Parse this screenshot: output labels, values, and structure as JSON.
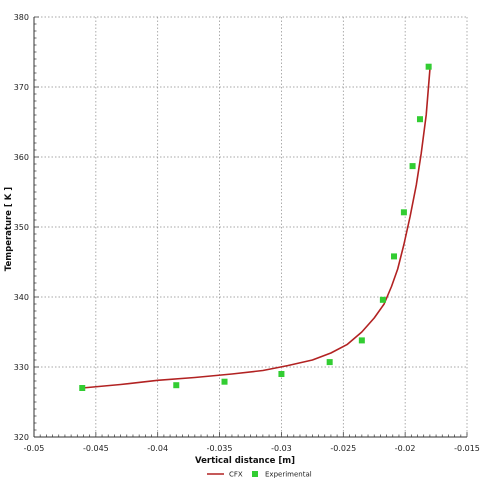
{
  "chart_data": {
    "type": "line",
    "xlabel": "Vertical distance [m]",
    "ylabel": "Temperature [ K ]",
    "xlim": [
      -0.05,
      -0.015
    ],
    "ylim": [
      320,
      380
    ],
    "xticks": [
      -0.05,
      -0.045,
      -0.04,
      -0.035,
      -0.03,
      -0.025,
      -0.02,
      -0.015
    ],
    "yticks": [
      320,
      330,
      340,
      350,
      360,
      370,
      380
    ],
    "xtick_labels": [
      "-0.05",
      "-0.045",
      "-0.04",
      "-0.035",
      "-0.03",
      "-0.025",
      "-0.02",
      "-0.015"
    ],
    "ytick_labels": [
      "320",
      "330",
      "340",
      "350",
      "360",
      "370",
      "380"
    ],
    "grid": true,
    "legend_position": "bottom-center",
    "series": [
      {
        "name": "CFX",
        "type": "line",
        "color": "#b22222",
        "x": [
          -0.0461,
          -0.043,
          -0.04,
          -0.037,
          -0.034,
          -0.0315,
          -0.0295,
          -0.0275,
          -0.026,
          -0.0247,
          -0.0235,
          -0.0225,
          -0.0217,
          -0.0211,
          -0.0206,
          -0.0201,
          -0.0196,
          -0.0191,
          -0.0187,
          -0.0183,
          -0.018
        ],
        "y": [
          327.0,
          327.5,
          328.1,
          328.5,
          329.0,
          329.5,
          330.2,
          331.0,
          332.0,
          333.2,
          335.0,
          337.0,
          339.0,
          341.5,
          344.0,
          347.5,
          351.5,
          356.0,
          360.5,
          366.0,
          372.5
        ]
      },
      {
        "name": "Experimental",
        "type": "scatter",
        "color": "#32cd32",
        "x": [
          -0.0461,
          -0.0385,
          -0.0346,
          -0.03,
          -0.0261,
          -0.0235,
          -0.0218,
          -0.0209,
          -0.0201,
          -0.0194,
          -0.0188,
          -0.0181
        ],
        "y": [
          327.0,
          327.4,
          327.9,
          329.0,
          330.7,
          333.8,
          339.6,
          345.8,
          352.1,
          358.7,
          365.4,
          372.9
        ]
      }
    ]
  }
}
